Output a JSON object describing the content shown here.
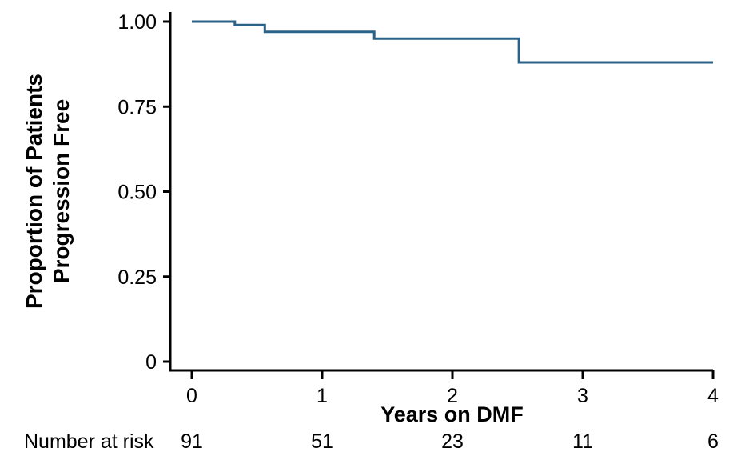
{
  "chart_data": {
    "type": "line",
    "subtype": "kaplan-meier-step",
    "title": "",
    "xlabel": "Years on DMF",
    "ylabel_lines": [
      "Proportion of Patients",
      "Progression Free"
    ],
    "xlim": [
      0,
      4
    ],
    "ylim": [
      0,
      1
    ],
    "grid": false,
    "legend": "none",
    "x_ticks": [
      {
        "value": 0,
        "label": "0"
      },
      {
        "value": 1,
        "label": "1"
      },
      {
        "value": 2,
        "label": "2"
      },
      {
        "value": 3,
        "label": "3"
      },
      {
        "value": 4,
        "label": "4"
      }
    ],
    "y_ticks": [
      {
        "value": 0.0,
        "label": "0"
      },
      {
        "value": 0.25,
        "label": "0.25"
      },
      {
        "value": 0.5,
        "label": "0.50"
      },
      {
        "value": 0.75,
        "label": "0.75"
      },
      {
        "value": 1.0,
        "label": "1.00"
      }
    ],
    "series": [
      {
        "name": "DMF",
        "color": "#2b6288",
        "step_times": [
          0,
          0.33,
          0.56,
          1.4,
          2.51
        ],
        "step_survival": [
          1.0,
          0.99,
          0.97,
          0.95,
          0.88
        ],
        "t_end": 4.0
      }
    ],
    "at_risk": {
      "label": "Number at risk",
      "times": [
        0,
        1,
        2,
        3,
        4
      ],
      "counts": [
        "91",
        "51",
        "23",
        "11",
        "6"
      ]
    },
    "colors": {
      "axis": "#000000",
      "text": "#000000",
      "background": "#ffffff",
      "curve": "#2b6288"
    }
  }
}
